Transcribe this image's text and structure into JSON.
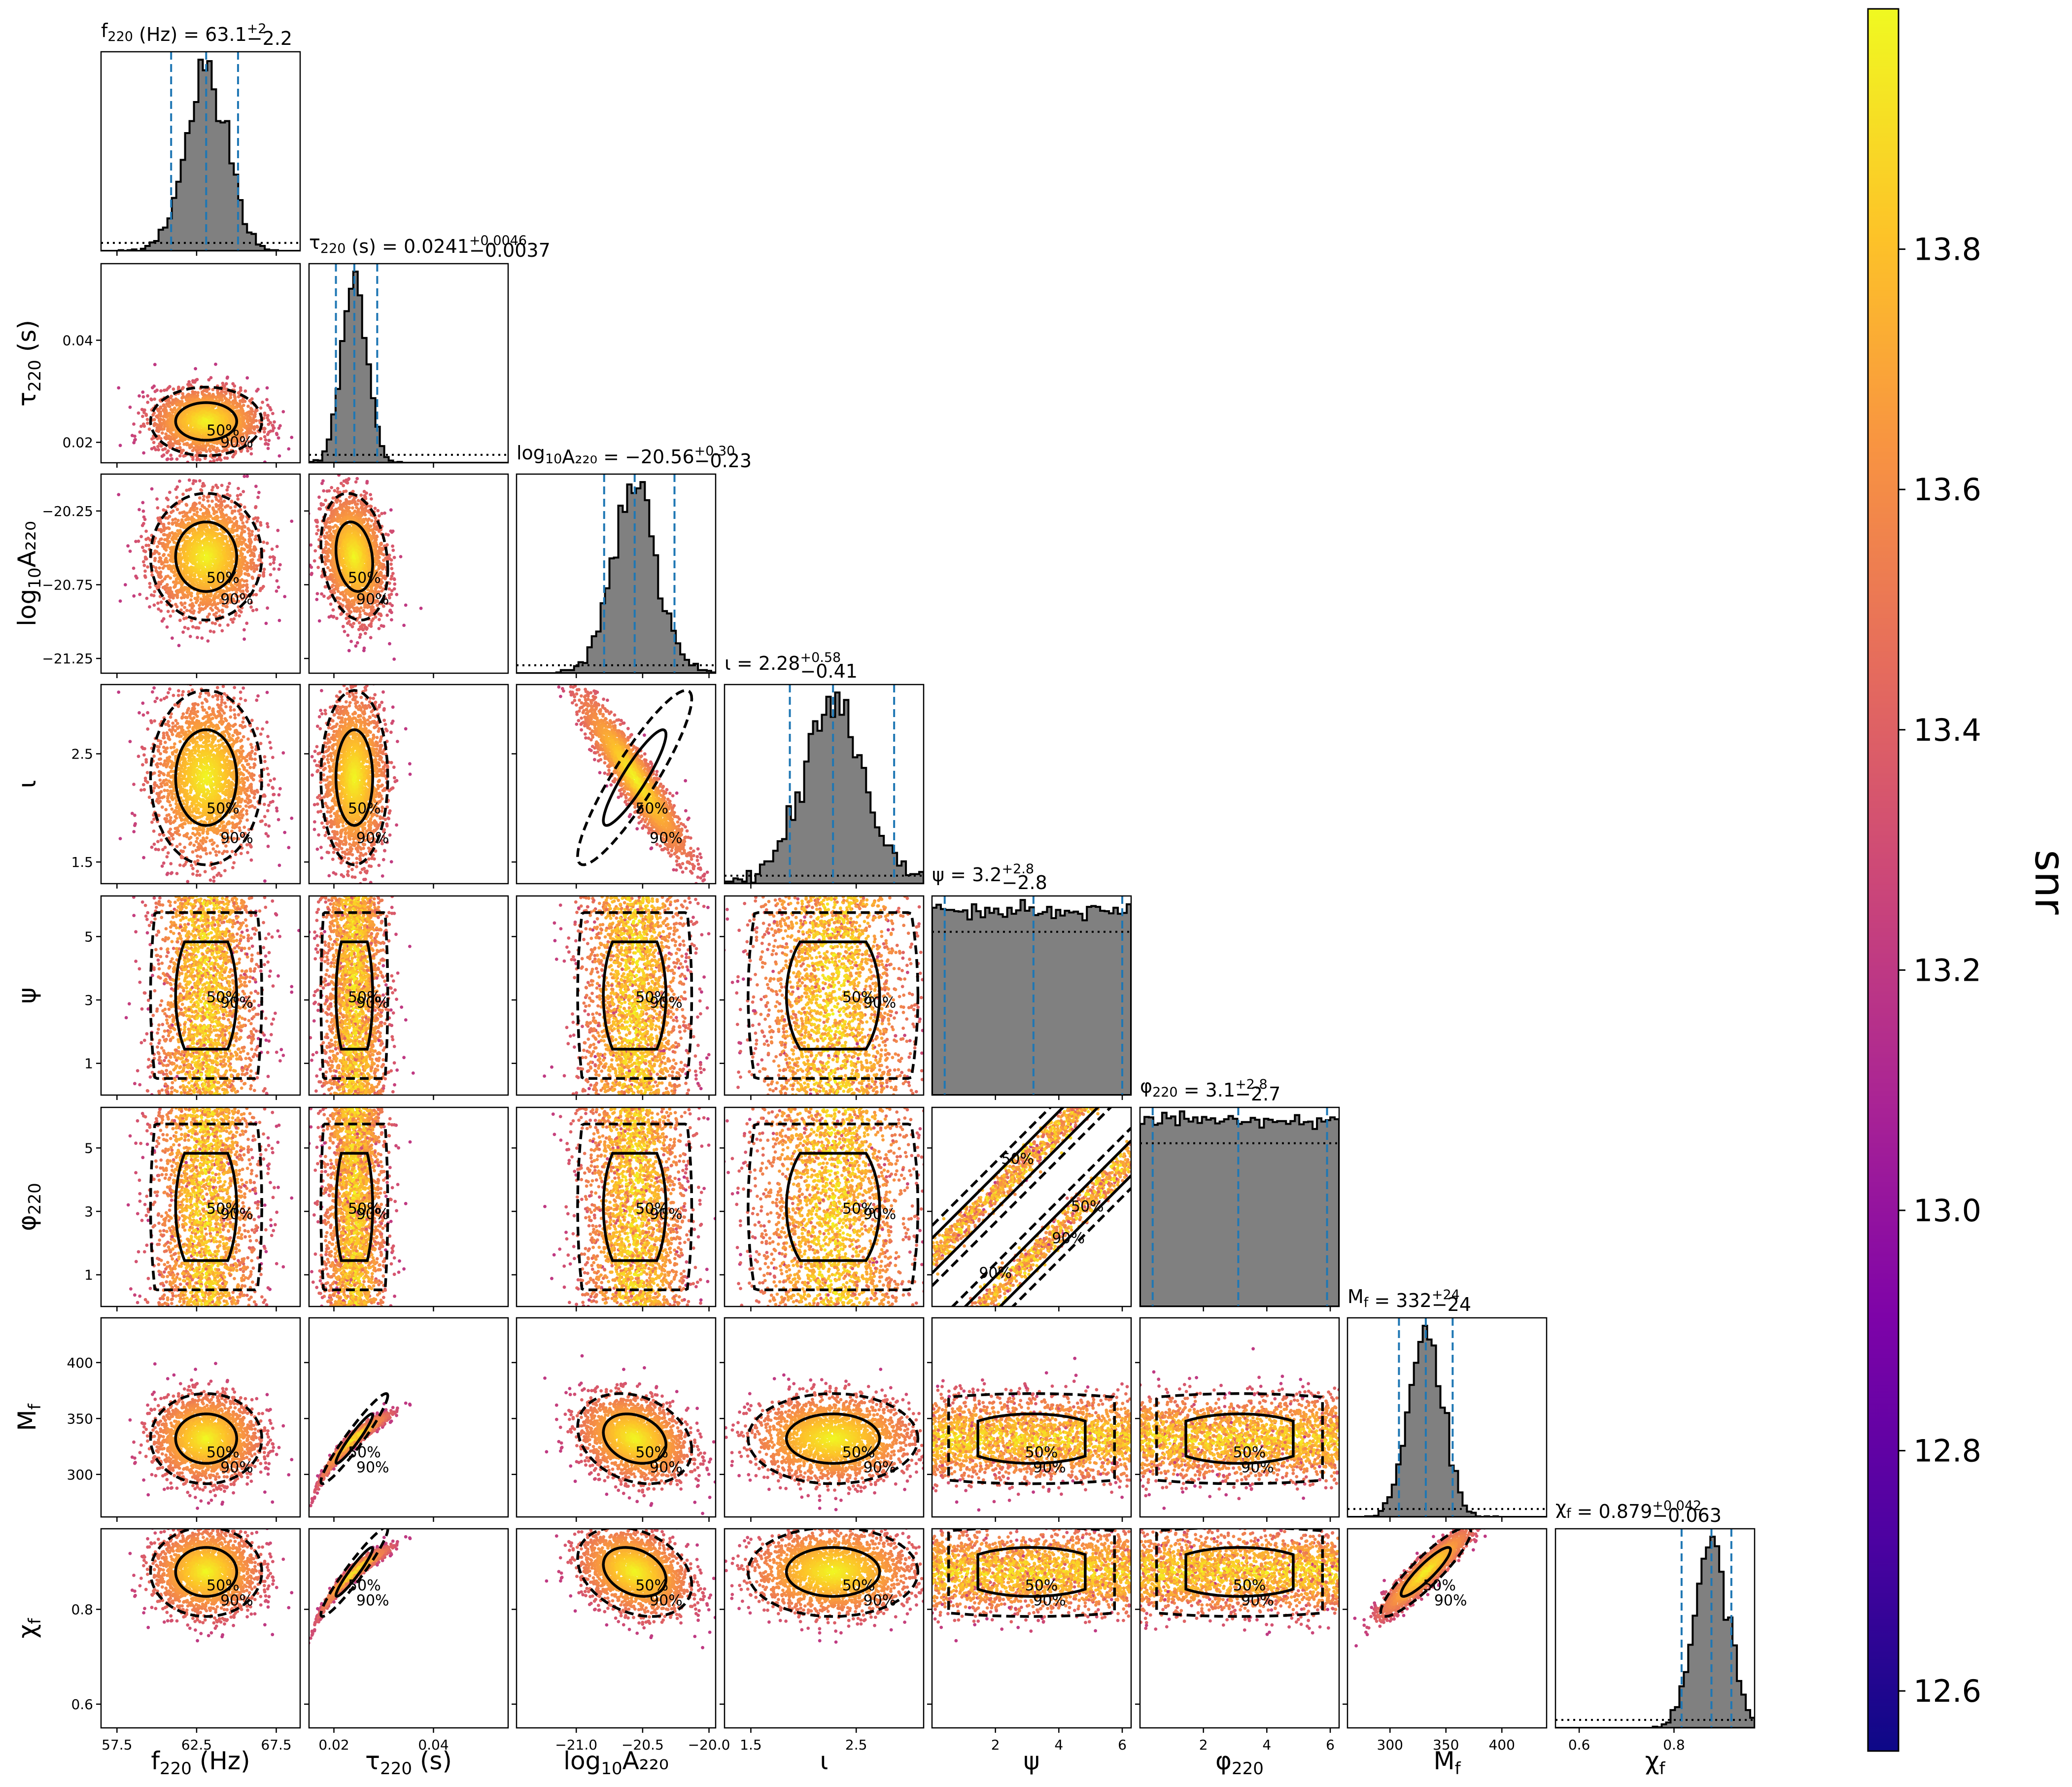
{
  "chart_data": {
    "type": "corner",
    "parameters": [
      {
        "key": "f220",
        "label": "f_220 (Hz)",
        "range": [
          56.5,
          69.0
        ],
        "ticks": [
          "57.5",
          "62.5",
          "67.5"
        ],
        "tick_values": [
          57.5,
          62.5,
          67.5
        ],
        "median": 63.1,
        "lower": 60.9,
        "upper": 65.1,
        "sigma": 1.3,
        "title_main": "f",
        "title_sub": "220",
        "title_rest": " (Hz) = 63.1",
        "title_sup": "+2",
        "title_inf": "−2.2"
      },
      {
        "key": "tau220",
        "label": "τ_220 (s)",
        "range": [
          0.015,
          0.055
        ],
        "ticks": [
          "0.02",
          "0.04"
        ],
        "tick_values": [
          0.02,
          0.04
        ],
        "median": 0.0241,
        "lower": 0.0204,
        "upper": 0.0287,
        "sigma": 0.0025,
        "title_main": "τ",
        "title_sub": "220",
        "title_rest": " (s) = 0.0241",
        "title_sup": "+0.0046",
        "title_inf": "−0.0037"
      },
      {
        "key": "logA",
        "label": "log10 A_220",
        "range": [
          -21.45,
          -19.95
        ],
        "ticks": [
          "−21.0",
          "−20.5",
          "−20.0"
        ],
        "tick_values": [
          -21.0,
          -20.5,
          -20.0
        ],
        "median": -20.56,
        "lower": -20.79,
        "upper": -20.26,
        "sigma": 0.16,
        "title_main": "log",
        "title_sub": "10",
        "title_rest": "A₂₂₀ = −20.56",
        "title_sup": "+0.30",
        "title_inf": "−0.23"
      },
      {
        "key": "iota",
        "label": "ι",
        "range": [
          1.25,
          3.14
        ],
        "ticks": [
          "1.5",
          "2.5"
        ],
        "tick_values": [
          1.5,
          2.5
        ],
        "median": 2.28,
        "lower": 1.87,
        "upper": 2.86,
        "sigma": 0.3,
        "title_main": "ι",
        "title_sub": "",
        "title_rest": " = 2.28",
        "title_sup": "+0.58",
        "title_inf": "−0.41"
      },
      {
        "key": "psi",
        "label": "ψ",
        "range": [
          0.0,
          6.28
        ],
        "ticks": [
          "2",
          "4",
          "6"
        ],
        "tick_values": [
          2,
          4,
          6
        ],
        "median": 3.2,
        "lower": 0.4,
        "upper": 6.0,
        "sigma": 0,
        "title_main": "ψ",
        "title_sub": "",
        "title_rest": " = 3.2",
        "title_sup": "+2.8",
        "title_inf": "−2.8"
      },
      {
        "key": "phi220",
        "label": "φ_220",
        "range": [
          0.0,
          6.28
        ],
        "ticks": [
          "2",
          "4",
          "6"
        ],
        "tick_values": [
          2,
          4,
          6
        ],
        "median": 3.1,
        "lower": 0.4,
        "upper": 5.9,
        "sigma": 0,
        "title_main": "φ",
        "title_sub": "220",
        "title_rest": " = 3.1",
        "title_sup": "+2.8",
        "title_inf": "−2.7"
      },
      {
        "key": "Mf",
        "label": "M_f",
        "range": [
          262,
          440
        ],
        "ticks": [
          "300",
          "350",
          "400"
        ],
        "tick_values": [
          300,
          350,
          400
        ],
        "median": 332,
        "lower": 308,
        "upper": 356,
        "sigma": 15,
        "title_main": "M",
        "title_sub": "f",
        "title_rest": " = 332",
        "title_sup": "+24",
        "title_inf": "−24"
      },
      {
        "key": "chif",
        "label": "χ_f",
        "range": [
          0.55,
          0.97
        ],
        "ticks": [
          "0.6",
          "0.8"
        ],
        "tick_values": [
          0.6,
          0.8
        ],
        "median": 0.879,
        "lower": 0.816,
        "upper": 0.921,
        "sigma": 0.035,
        "title_main": "χ",
        "title_sub": "f",
        "title_rest": " = 0.879",
        "title_sup": "+0.042",
        "title_inf": "−0.063"
      }
    ],
    "y_axis_labels": {
      "tau220": {
        "range": [
          0.016,
          0.055
        ],
        "ticks": [
          "0.02",
          "0.04"
        ],
        "tick_values": [
          0.02,
          0.04
        ]
      },
      "logA": {
        "range": [
          -21.35,
          -20.0
        ],
        "ticks": [
          "−20.25",
          "−20.75",
          "−21.25"
        ],
        "tick_values": [
          -20.25,
          -20.75,
          -21.25
        ]
      },
      "iota": {
        "range": [
          1.3,
          3.14
        ],
        "ticks": [
          "2.5",
          "1.5"
        ],
        "tick_values": [
          2.5,
          1.5
        ]
      },
      "psi": {
        "range": [
          0.0,
          6.28
        ],
        "ticks": [
          "5",
          "3",
          "1"
        ],
        "tick_values": [
          5,
          3,
          1
        ]
      },
      "phi220": {
        "range": [
          0.0,
          6.28
        ],
        "ticks": [
          "5",
          "3",
          "1"
        ],
        "tick_values": [
          5,
          3,
          1
        ]
      },
      "Mf": {
        "range": [
          262,
          440
        ],
        "ticks": [
          "400",
          "350",
          "300"
        ],
        "tick_values": [
          400,
          350,
          300
        ]
      },
      "chif": {
        "range": [
          0.55,
          0.97
        ],
        "ticks": [
          "0.8",
          "0.6"
        ],
        "tick_values": [
          0.8,
          0.6
        ]
      }
    },
    "contour_levels": [
      "50%",
      "90%"
    ],
    "colorbar": {
      "label": "snr",
      "range": [
        12.55,
        14.0
      ],
      "ticks": [
        "12.6",
        "12.8",
        "13.0",
        "13.2",
        "13.4",
        "13.6",
        "13.8"
      ],
      "tick_values": [
        12.6,
        12.8,
        13.0,
        13.2,
        13.4,
        13.6,
        13.8
      ],
      "colormap": "plasma"
    },
    "colors": {
      "histogram_fill": "#808080",
      "quantile_lines": "#1f77b4",
      "contour": "#000000",
      "frame": "#000000"
    }
  }
}
